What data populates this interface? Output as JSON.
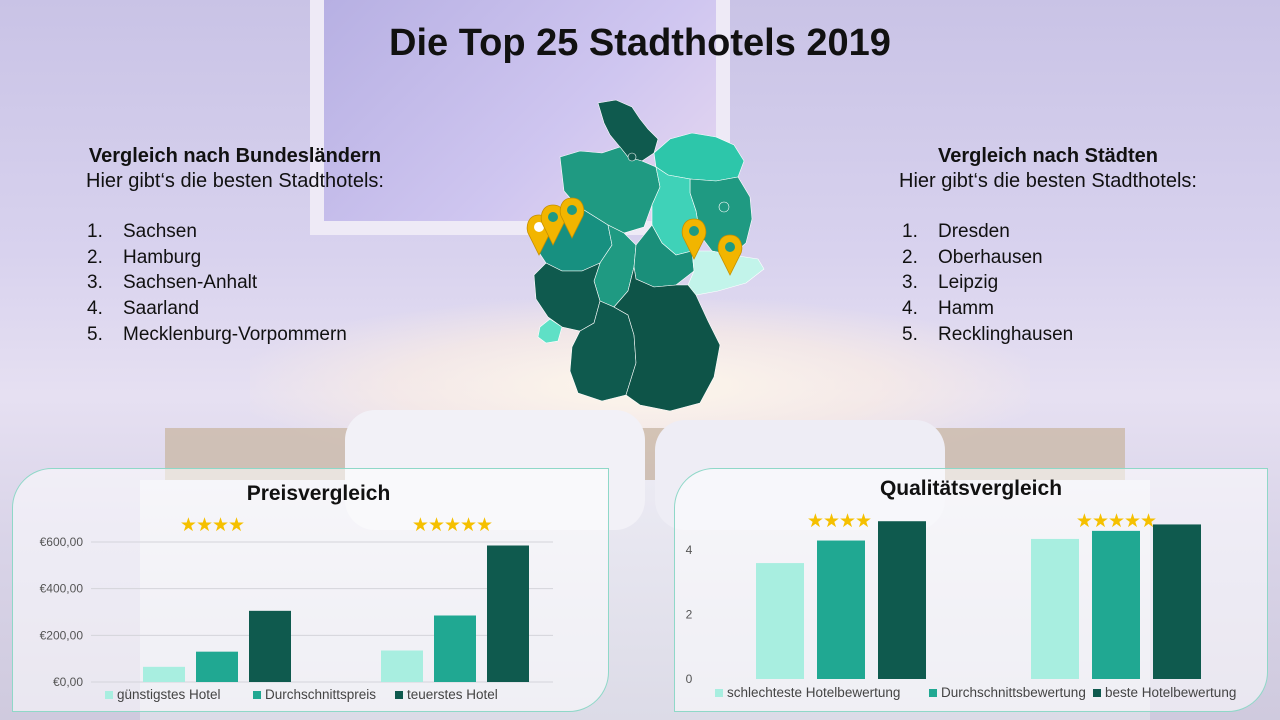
{
  "title": "Die Top 25 Stadthotels 2019",
  "left": {
    "heading": "Vergleich nach Bundesländern",
    "subheading": "Hier gibt‘s die besten Stadthotels:",
    "items": [
      {
        "num": "1.",
        "label": "Sachsen"
      },
      {
        "num": "2.",
        "label": "Hamburg"
      },
      {
        "num": "3.",
        "label": "Sachsen-Anhalt"
      },
      {
        "num": "4.",
        "label": "Saarland"
      },
      {
        "num": "5.",
        "label": "Mecklenburg-Vorpommern"
      }
    ]
  },
  "right": {
    "heading": "Vergleich nach Städten",
    "subheading": "Hier gibt‘s die besten Stadthotels:",
    "items": [
      {
        "num": "1.",
        "label": "Dresden"
      },
      {
        "num": "2.",
        "label": "Oberhausen"
      },
      {
        "num": "3.",
        "label": "Leipzig"
      },
      {
        "num": "4.",
        "label": "Hamm"
      },
      {
        "num": "5.",
        "label": "Recklinghausen"
      }
    ]
  },
  "colors": {
    "light": "#a8eee0",
    "mid": "#20a892",
    "dark": "#0f5a4e",
    "star": "#f5c000",
    "pin": "#f2b500"
  },
  "chart_data": [
    {
      "type": "bar",
      "title": "Preisvergleich",
      "categories": [
        "★★★★",
        "★★★★★"
      ],
      "series": [
        {
          "name": "günstigstes Hotel",
          "values": [
            65,
            135
          ]
        },
        {
          "name": "Durchschnittspreis",
          "values": [
            130,
            285
          ]
        },
        {
          "name": "teuerstes Hotel",
          "values": [
            305,
            585
          ]
        }
      ],
      "ylim": [
        0,
        600
      ],
      "yticks": [
        "€0,00",
        "€200,00",
        "€400,00",
        "€600,00"
      ],
      "ytick_values": [
        0,
        200,
        400,
        600
      ],
      "legend": "bottom",
      "grid": true
    },
    {
      "type": "bar",
      "title": "Qualitätsvergleich",
      "categories": [
        "★★★★",
        "★★★★★"
      ],
      "series": [
        {
          "name": "schlechteste Hotelbewertung",
          "values": [
            3.6,
            4.35
          ]
        },
        {
          "name": "Durchschnittsbewertung",
          "values": [
            4.3,
            4.6
          ]
        },
        {
          "name": "beste Hotelbewertung",
          "values": [
            4.9,
            4.8
          ]
        }
      ],
      "ylim": [
        0,
        5
      ],
      "yticks": [
        "0",
        "2",
        "4"
      ],
      "ytick_values": [
        0,
        2,
        4
      ],
      "legend": "bottom",
      "grid": false
    }
  ]
}
